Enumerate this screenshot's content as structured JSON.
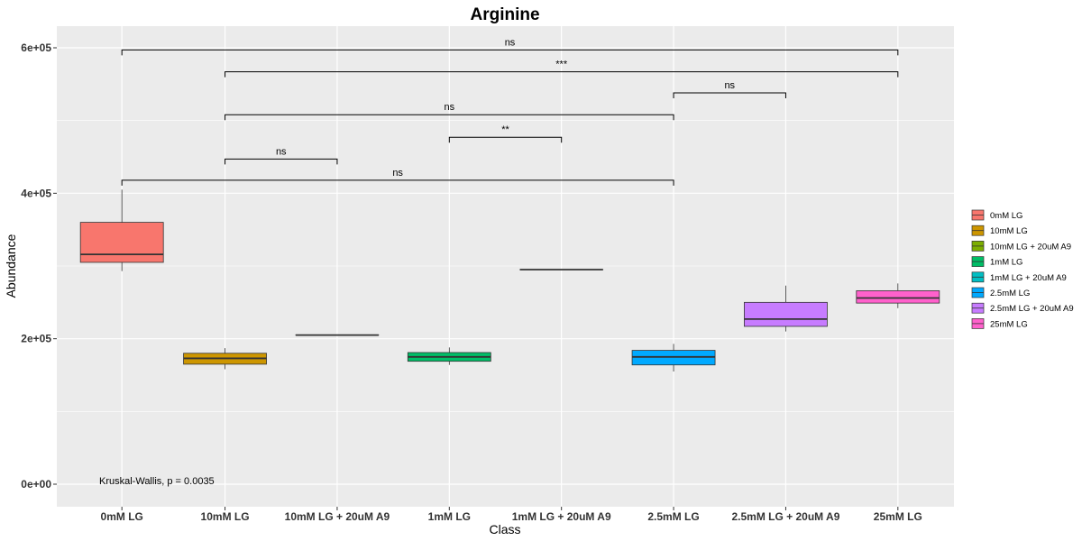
{
  "chart_data": {
    "type": "box",
    "title": "Arginine",
    "xlabel": "Class",
    "ylabel": "Abundance",
    "ylim": [
      -30000,
      630000
    ],
    "yticks": [
      0,
      200000,
      400000,
      600000
    ],
    "ytick_labels": [
      "0e+00",
      "2e+05",
      "4e+05",
      "6e+05"
    ],
    "grid": true,
    "legend_position": "right",
    "categories": [
      "0mM LG",
      "10mM LG",
      "10mM LG + 20uM A9",
      "1mM LG",
      "1mM LG + 20uM A9",
      "2.5mM LG",
      "2.5mM LG + 20uM A9",
      "25mM LG"
    ],
    "boxes": [
      {
        "name": "0mM LG",
        "color": "#F8766D",
        "min": 293000,
        "q1": 305000,
        "median": 316000,
        "q3": 360000,
        "max": 405000
      },
      {
        "name": "10mM LG",
        "color": "#CD9600",
        "min": 158000,
        "q1": 165000,
        "median": 173000,
        "q3": 180000,
        "max": 187000
      },
      {
        "name": "10mM LG + 20uM A9",
        "color": "#7CAE00",
        "min": 205000,
        "q1": 205000,
        "median": 205000,
        "q3": 205000,
        "max": 205000
      },
      {
        "name": "1mM LG",
        "color": "#00BE67",
        "min": 164000,
        "q1": 169000,
        "median": 175000,
        "q3": 181000,
        "max": 188000
      },
      {
        "name": "1mM LG + 20uM A9",
        "color": "#00BFC4",
        "min": 295000,
        "q1": 295000,
        "median": 295000,
        "q3": 295000,
        "max": 295000
      },
      {
        "name": "2.5mM LG",
        "color": "#00A9FF",
        "min": 155000,
        "q1": 164000,
        "median": 175000,
        "q3": 184000,
        "max": 193000
      },
      {
        "name": "2.5mM LG + 20uM A9",
        "color": "#C77CFF",
        "min": 210000,
        "q1": 217000,
        "median": 227000,
        "q3": 250000,
        "max": 273000
      },
      {
        "name": "25mM LG",
        "color": "#FF61CC",
        "min": 242000,
        "q1": 249000,
        "median": 256000,
        "q3": 266000,
        "max": 276000
      }
    ],
    "comparisons": [
      {
        "from": "0mM LG",
        "to": "25mM LG",
        "y": 597000,
        "label": "ns"
      },
      {
        "from": "10mM LG",
        "to": "25mM LG",
        "y": 567000,
        "label": "***"
      },
      {
        "from": "2.5mM LG",
        "to": "2.5mM LG + 20uM A9",
        "y": 538000,
        "label": "ns"
      },
      {
        "from": "10mM LG",
        "to": "2.5mM LG",
        "y": 508000,
        "label": "ns"
      },
      {
        "from": "1mM LG",
        "to": "1mM LG + 20uM A9",
        "y": 477000,
        "label": "**"
      },
      {
        "from": "10mM LG",
        "to": "10mM LG + 20uM A9",
        "y": 447000,
        "label": "ns"
      },
      {
        "from": "0mM LG",
        "to": "2.5mM LG",
        "y": 418000,
        "label": "ns"
      }
    ],
    "annotation": {
      "text": "Kruskal-Wallis, p = 0.0035",
      "x_category": "0mM LG",
      "y": 2000
    }
  }
}
